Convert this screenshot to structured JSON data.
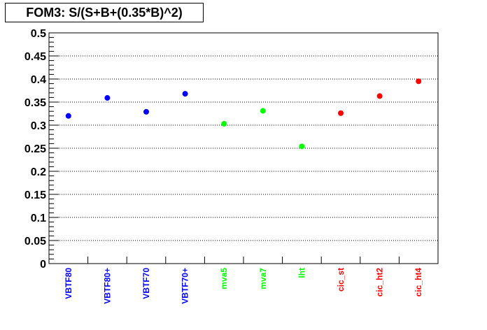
{
  "chart_data": {
    "type": "scatter",
    "title": "FOM3: S/(S+B+(0.35*B)^2)",
    "xlabel": "",
    "ylabel": "",
    "ylim": [
      0,
      0.5
    ],
    "y_major_ticks": [
      "0",
      "0.05",
      "0.1",
      "0.15",
      "0.2",
      "0.25",
      "0.3",
      "0.35",
      "0.4",
      "0.45",
      "0.5"
    ],
    "grid": "horizontal dotted",
    "legend": "none",
    "categories": [
      "VBTF80",
      "VBTF80+",
      "VBTF70",
      "VBTF70+",
      "mva5",
      "mva7",
      "lht",
      "cic_st",
      "cic_ht2",
      "cic_ht4"
    ],
    "values": [
      0.32,
      0.359,
      0.329,
      0.368,
      0.303,
      0.331,
      0.254,
      0.326,
      0.363,
      0.395
    ],
    "colors": [
      "#0000ff",
      "#0000ff",
      "#0000ff",
      "#0000ff",
      "#00ff00",
      "#00ff00",
      "#00ff00",
      "#ff0000",
      "#ff0000",
      "#ff0000"
    ]
  }
}
